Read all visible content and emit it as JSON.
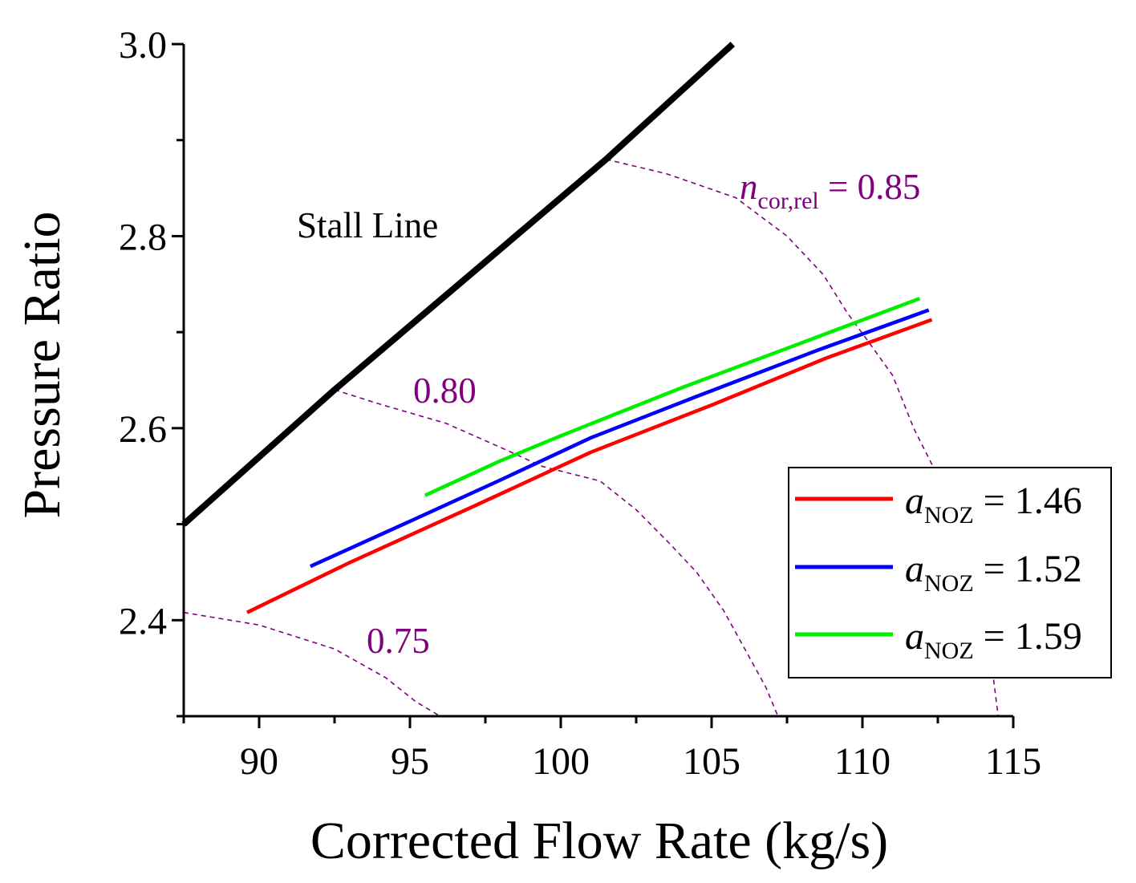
{
  "chart_data": {
    "type": "line",
    "title": "",
    "xlabel": "Corrected Flow Rate (kg/s)",
    "ylabel": "Pressure Ratio",
    "xlim": [
      87.5,
      115
    ],
    "ylim": [
      2.3,
      3.0
    ],
    "x_major_ticks": [
      90,
      95,
      100,
      105,
      110,
      115
    ],
    "x_minor_ticks": [
      87.5,
      92.5,
      97.5,
      102.5,
      107.5,
      112.5
    ],
    "y_major_ticks": [
      2.4,
      2.6,
      2.8,
      3.0
    ],
    "y_minor_ticks": [
      2.3,
      2.5,
      2.7,
      2.9
    ],
    "x_tick_labels": [
      "90",
      "95",
      "100",
      "105",
      "110",
      "115"
    ],
    "y_tick_labels": [
      "2.4",
      "2.6",
      "2.8",
      "3.0"
    ],
    "grid": false,
    "legend_position": "lower-right",
    "colors": {
      "stall": "#000000",
      "speed": "#800080",
      "a146": "#ff0000",
      "a152": "#0000ff",
      "a159": "#00ee00"
    },
    "stall_line": {
      "label": "Stall Line",
      "x": [
        87.5,
        92.5,
        101.5,
        105.7
      ],
      "y": [
        2.5,
        2.64,
        2.88,
        3.0
      ]
    },
    "speed_lines": [
      {
        "label_var": "n",
        "label_sub": "cor,rel",
        "label_value": " = 0.85",
        "x": [
          101.5,
          103.5,
          105.8,
          107.5,
          108.7,
          109.5,
          110.2,
          111.0,
          111.7,
          112.5,
          113.3,
          114.0,
          114.3,
          114.5
        ],
        "y": [
          2.88,
          2.865,
          2.84,
          2.8,
          2.76,
          2.72,
          2.69,
          2.655,
          2.6,
          2.55,
          2.48,
          2.41,
          2.35,
          2.3
        ]
      },
      {
        "label": "0.80",
        "x": [
          92.5,
          94.0,
          96.2,
          98.0,
          99.4,
          101.3,
          102.5,
          103.6,
          104.5,
          105.4,
          106.1,
          106.8,
          107.2
        ],
        "y": [
          2.64,
          2.625,
          2.605,
          2.58,
          2.56,
          2.545,
          2.515,
          2.48,
          2.45,
          2.41,
          2.37,
          2.33,
          2.3
        ]
      },
      {
        "label": "0.75",
        "x": [
          87.5,
          90.0,
          92.5,
          94.2,
          95.2,
          96.0
        ],
        "y": [
          2.408,
          2.395,
          2.37,
          2.34,
          2.315,
          2.3
        ]
      }
    ],
    "series": [
      {
        "name_var": "a",
        "name_sub": "NOZ",
        "name_value": " = 1.46",
        "color_key": "a146",
        "x": [
          89.6,
          93.0,
          97.0,
          101.0,
          105.0,
          108.8,
          112.3
        ],
        "y": [
          2.408,
          2.46,
          2.517,
          2.575,
          2.624,
          2.673,
          2.713
        ]
      },
      {
        "name_var": "a",
        "name_sub": "NOZ",
        "name_value": " = 1.52",
        "color_key": "a152",
        "x": [
          91.7,
          95.0,
          98.0,
          101.0,
          104.5,
          108.5,
          112.2
        ],
        "y": [
          2.456,
          2.503,
          2.546,
          2.59,
          2.633,
          2.681,
          2.723
        ]
      },
      {
        "name_var": "a",
        "name_sub": "NOZ",
        "name_value": " = 1.59",
        "color_key": "a159",
        "x": [
          95.5,
          98.0,
          100.0,
          104.0,
          108.0,
          111.9
        ],
        "y": [
          2.53,
          2.566,
          2.592,
          2.642,
          2.689,
          2.735
        ]
      }
    ]
  }
}
